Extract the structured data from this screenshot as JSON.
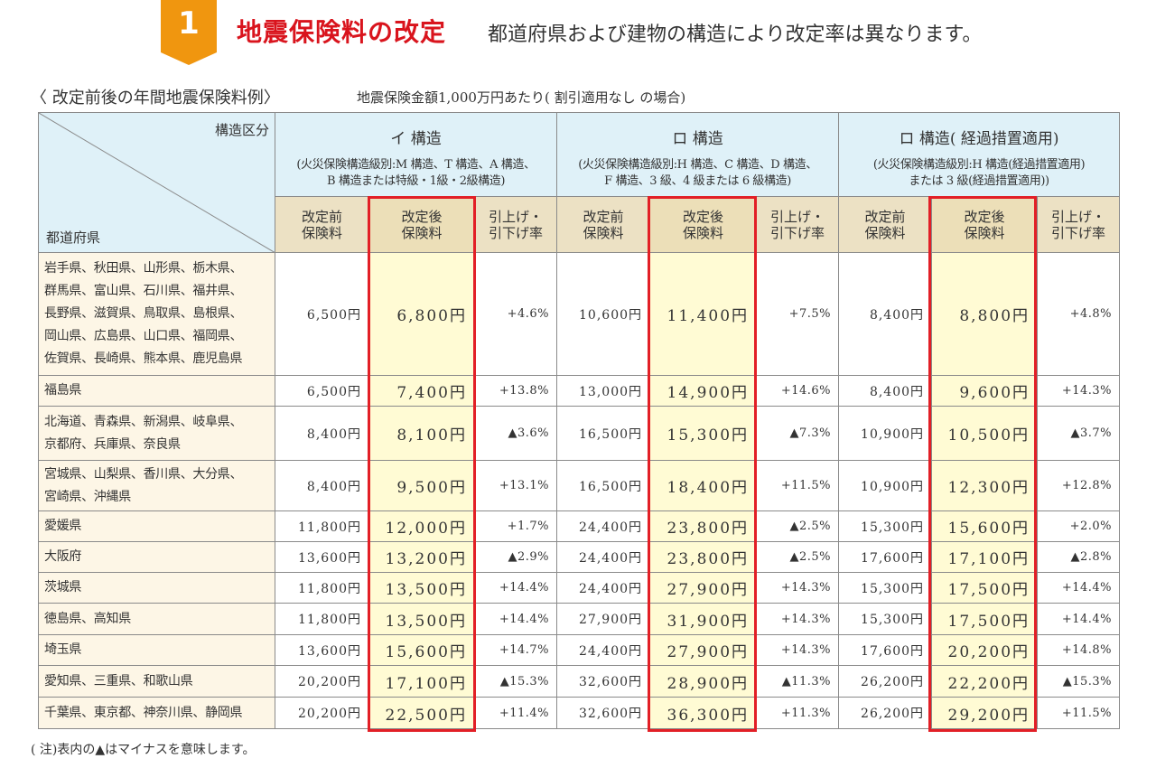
{
  "header": {
    "badge_number": "1",
    "title": "地震保険料の改定",
    "subtitle": "都道府県および建物の構造により改定率は異なります。"
  },
  "caption": {
    "title": "〈 改定前後の年間地震保険料例〉",
    "note": "地震保険金額1,000万円あたり( 割引適用なし の場合)"
  },
  "table": {
    "corner_top": "構造区分",
    "corner_bottom": "都道府県",
    "groups": [
      {
        "title": "イ 構造",
        "desc1": "(火災保険構造級別:M 構造、T 構造、A 構造、",
        "desc2": "B 構造または特級・1級・2級構造)"
      },
      {
        "title": "ロ 構造",
        "desc1": "(火災保険構造級別:H 構造、C 構造、D 構造、",
        "desc2": "F 構造、3 級、4 級または 6 級構造)"
      },
      {
        "title": "ロ 構造( 経過措置適用)",
        "desc1": "(火災保険構造級別:H 構造(経過措置適用)",
        "desc2": "または 3 級(経過措置適用))"
      }
    ],
    "sub_headers": {
      "before_1": "改定前",
      "before_2": "保険料",
      "after_1": "改定後",
      "after_2": "保険料",
      "rate_1": "引上げ・",
      "rate_2": "引下げ率"
    },
    "rows": [
      {
        "pref": "岩手県、秋田県、山形県、栃木県、\n群馬県、富山県、石川県、福井県、\n長野県、滋賀県、鳥取県、島根県、\n岡山県、広島県、山口県、福岡県、\n佐賀県、長崎県、熊本県、鹿児島県",
        "c": [
          "6,500円",
          "6,800円",
          "+4.6%",
          "10,600円",
          "11,400円",
          "+7.5%",
          "8,400円",
          "8,800円",
          "+4.8%"
        ]
      },
      {
        "pref": "福島県",
        "c": [
          "6,500円",
          "7,400円",
          "+13.8%",
          "13,000円",
          "14,900円",
          "+14.6%",
          "8,400円",
          "9,600円",
          "+14.3%"
        ]
      },
      {
        "pref": "北海道、青森県、新潟県、岐阜県、\n京都府、兵庫県、奈良県",
        "c": [
          "8,400円",
          "8,100円",
          "▲3.6%",
          "16,500円",
          "15,300円",
          "▲7.3%",
          "10,900円",
          "10,500円",
          "▲3.7%"
        ]
      },
      {
        "pref": "宮城県、山梨県、香川県、大分県、\n宮崎県、沖縄県",
        "c": [
          "8,400円",
          "9,500円",
          "+13.1%",
          "16,500円",
          "18,400円",
          "+11.5%",
          "10,900円",
          "12,300円",
          "+12.8%"
        ]
      },
      {
        "pref": "愛媛県",
        "c": [
          "11,800円",
          "12,000円",
          "+1.7%",
          "24,400円",
          "23,800円",
          "▲2.5%",
          "15,300円",
          "15,600円",
          "+2.0%"
        ]
      },
      {
        "pref": "大阪府",
        "c": [
          "13,600円",
          "13,200円",
          "▲2.9%",
          "24,400円",
          "23,800円",
          "▲2.5%",
          "17,600円",
          "17,100円",
          "▲2.8%"
        ]
      },
      {
        "pref": "茨城県",
        "c": [
          "11,800円",
          "13,500円",
          "+14.4%",
          "24,400円",
          "27,900円",
          "+14.3%",
          "15,300円",
          "17,500円",
          "+14.4%"
        ]
      },
      {
        "pref": "徳島県、高知県",
        "c": [
          "11,800円",
          "13,500円",
          "+14.4%",
          "27,900円",
          "31,900円",
          "+14.3%",
          "15,300円",
          "17,500円",
          "+14.4%"
        ]
      },
      {
        "pref": "埼玉県",
        "c": [
          "13,600円",
          "15,600円",
          "+14.7%",
          "24,400円",
          "27,900円",
          "+14.3%",
          "17,600円",
          "20,200円",
          "+14.8%"
        ]
      },
      {
        "pref": "愛知県、三重県、和歌山県",
        "c": [
          "20,200円",
          "17,100円",
          "▲15.3%",
          "32,600円",
          "28,900円",
          "▲11.3%",
          "26,200円",
          "22,200円",
          "▲15.3%"
        ]
      },
      {
        "pref": "千葉県、東京都、神奈川県、静岡県",
        "c": [
          "20,200円",
          "22,500円",
          "+11.4%",
          "32,600円",
          "36,300円",
          "+11.3%",
          "26,200円",
          "29,200円",
          "+11.5%"
        ]
      }
    ]
  },
  "footnote": "( 注)表内の▲はマイナスを意味します。",
  "colors": {
    "accent_red": "#e21f26",
    "badge_orange": "#f0960f",
    "header_blue": "#dff1f8",
    "header_tan": "#ece1c4",
    "highlight_yellow": "#fffbd4"
  }
}
